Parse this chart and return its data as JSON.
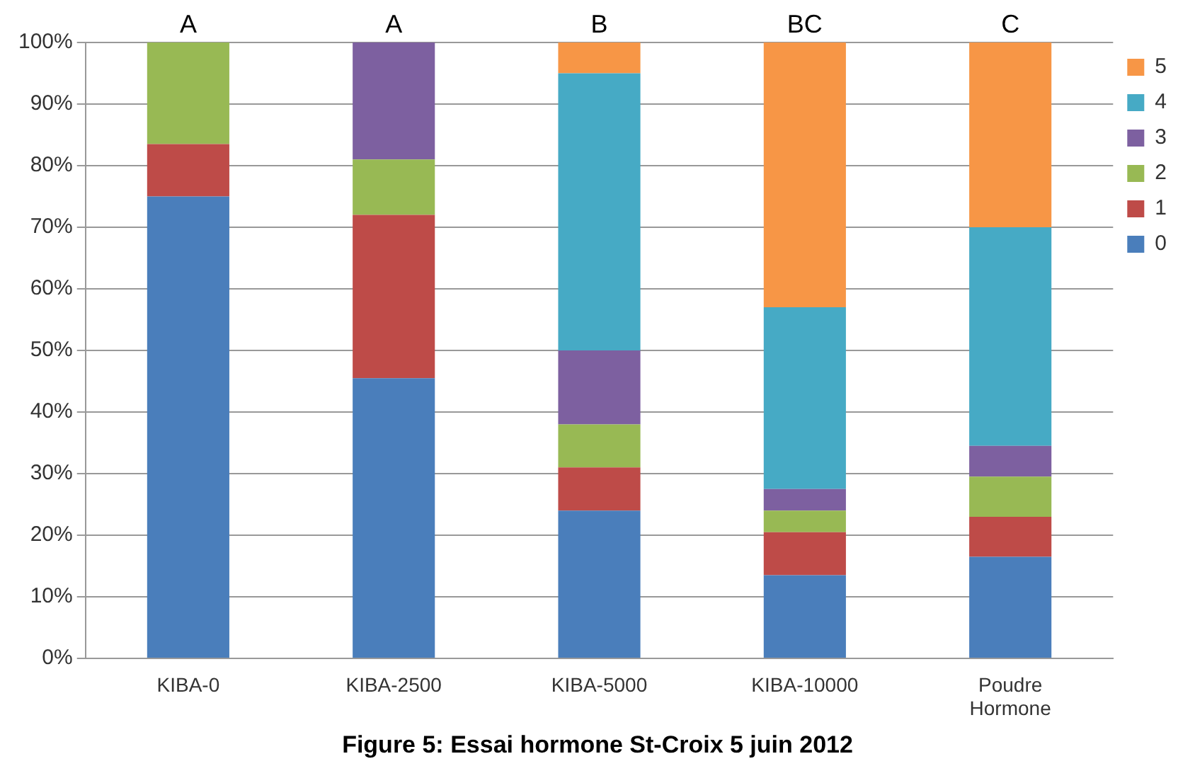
{
  "chart_data": {
    "type": "bar",
    "stacked": true,
    "title": "Figure 5: Essai hormone St-Croix 5 juin 2012",
    "categories": [
      "KIBA-0",
      "KIBA-2500",
      "KIBA-5000",
      "KIBA-10000",
      "Poudre Hormone"
    ],
    "series": [
      {
        "name": "0",
        "color": "#4a7ebb",
        "values": [
          75,
          45.5,
          24,
          13.5,
          16.5
        ]
      },
      {
        "name": "1",
        "color": "#be4b48",
        "values": [
          8.5,
          26.5,
          7,
          7,
          6.5
        ]
      },
      {
        "name": "2",
        "color": "#98b954",
        "values": [
          16.5,
          9,
          7,
          3.5,
          6.5
        ]
      },
      {
        "name": "3",
        "color": "#7d60a0",
        "values": [
          0,
          19,
          12,
          3.5,
          5
        ]
      },
      {
        "name": "4",
        "color": "#46aac5",
        "values": [
          0,
          0,
          45,
          29.5,
          35.5
        ]
      },
      {
        "name": "5",
        "color": "#f79646",
        "values": [
          0,
          0,
          5,
          43,
          30
        ]
      }
    ],
    "ylim": [
      0,
      100
    ],
    "yticks": [
      {
        "value": 0,
        "label": "0%"
      },
      {
        "value": 10,
        "label": "10%"
      },
      {
        "value": 20,
        "label": "20%"
      },
      {
        "value": 30,
        "label": "30%"
      },
      {
        "value": 40,
        "label": "40%"
      },
      {
        "value": 50,
        "label": "50%"
      },
      {
        "value": 60,
        "label": "60%"
      },
      {
        "value": 70,
        "label": "70%"
      },
      {
        "value": 80,
        "label": "80%"
      },
      {
        "value": 90,
        "label": "90%"
      },
      {
        "value": 100,
        "label": "100%"
      }
    ],
    "annotations": [
      {
        "text": "A",
        "x": "KIBA-0",
        "y": 100
      },
      {
        "text": "A",
        "x": "KIBA-2500",
        "y": 100
      },
      {
        "text": "B",
        "x": "KIBA-5000",
        "y": 100
      },
      {
        "text": "BC",
        "x": "KIBA-10000",
        "y": 100
      },
      {
        "text": "C",
        "x": "Poudre Hormone",
        "y": 100
      }
    ],
    "grid": "y",
    "legend": "top right"
  }
}
